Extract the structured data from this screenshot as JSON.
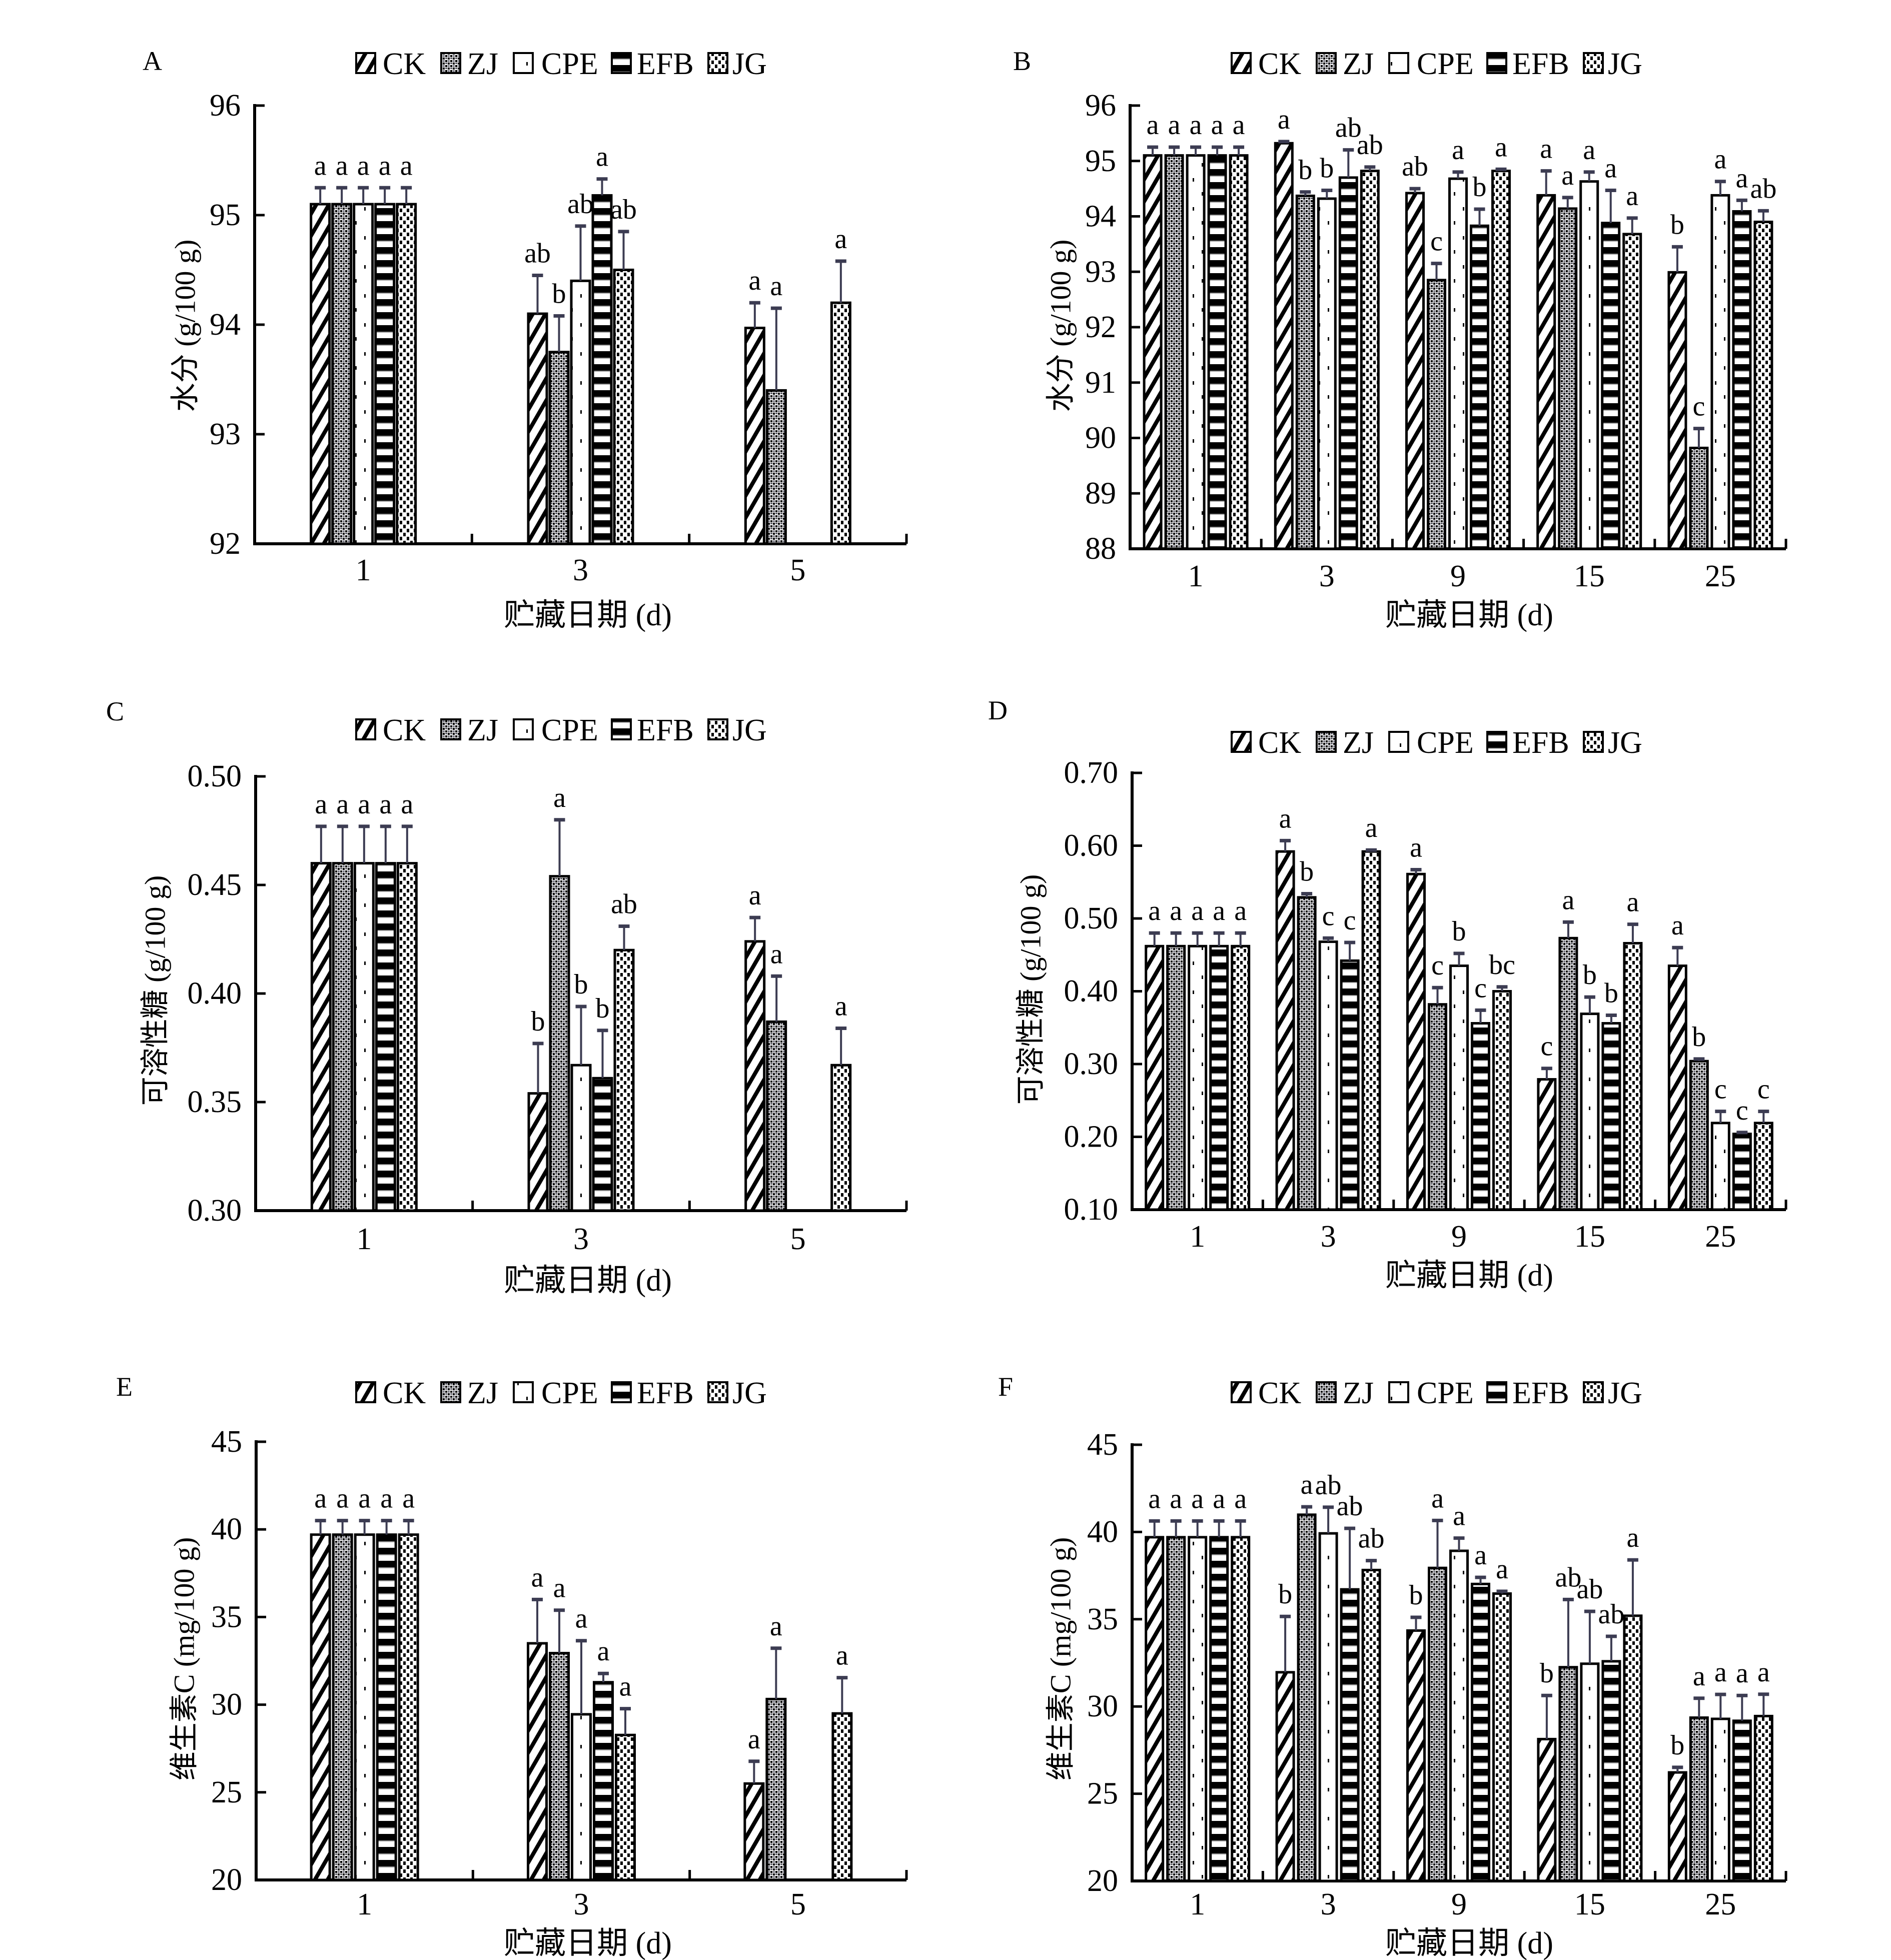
{
  "figure": {
    "series_names": [
      "CK",
      "ZJ",
      "CPE",
      "EFB",
      "JG"
    ],
    "colors": {
      "bar_outline": "#000000",
      "error_bar": "#3c3c52",
      "background": "#ffffff"
    }
  },
  "chart_data": [
    {
      "panel": "A",
      "type": "bar",
      "title": "",
      "xlabel": "贮藏日期 (d)",
      "ylabel": "水分 (g/100 g)",
      "ylim": [
        92,
        96
      ],
      "yticks": [
        "92",
        "93",
        "94",
        "95",
        "96"
      ],
      "grid": false,
      "legend": [
        "CK",
        "ZJ",
        "CPE",
        "EFB",
        "JG"
      ],
      "legend_position": "top-center",
      "categories": [
        "1",
        "3",
        "5"
      ],
      "series": [
        {
          "name": "CK",
          "values": [
            95.1,
            94.1,
            93.97
          ],
          "errors": [
            0.15,
            0.35,
            0.23
          ],
          "letters": [
            "a",
            "ab",
            "a"
          ]
        },
        {
          "name": "ZJ",
          "values": [
            95.1,
            93.75,
            93.4
          ],
          "errors": [
            0.15,
            0.33,
            0.75
          ],
          "letters": [
            "a",
            "b",
            "a"
          ]
        },
        {
          "name": "CPE",
          "values": [
            95.1,
            94.4,
            null
          ],
          "errors": [
            0.15,
            0.5,
            null
          ],
          "letters": [
            "a",
            "ab",
            ""
          ]
        },
        {
          "name": "EFB",
          "values": [
            95.1,
            95.18,
            null
          ],
          "errors": [
            0.15,
            0.15,
            null
          ],
          "letters": [
            "a",
            "a",
            ""
          ]
        },
        {
          "name": "JG",
          "values": [
            95.1,
            94.5,
            94.2
          ],
          "errors": [
            0.15,
            0.35,
            0.38
          ],
          "letters": [
            "a",
            "ab",
            "a"
          ]
        }
      ]
    },
    {
      "panel": "B",
      "type": "bar",
      "title": "",
      "xlabel": "贮藏日期 (d)",
      "ylabel": "水分 (g/100 g)",
      "ylim": [
        88,
        96
      ],
      "yticks": [
        "88",
        "89",
        "90",
        "91",
        "92",
        "93",
        "94",
        "95",
        "96"
      ],
      "grid": false,
      "legend": [
        "CK",
        "ZJ",
        "CPE",
        "EFB",
        "JG"
      ],
      "legend_position": "top-center",
      "categories": [
        "1",
        "3",
        "9",
        "15",
        "25"
      ],
      "series": [
        {
          "name": "CK",
          "values": [
            95.1,
            95.32,
            94.42,
            94.38,
            92.99
          ],
          "errors": [
            0.15,
            0.03,
            0.08,
            0.44,
            0.46
          ],
          "letters": [
            "a",
            "a",
            "ab",
            "a",
            "b"
          ]
        },
        {
          "name": "ZJ",
          "values": [
            95.1,
            94.37,
            92.85,
            94.14,
            89.82
          ],
          "errors": [
            0.15,
            0.07,
            0.3,
            0.2,
            0.35
          ],
          "letters": [
            "a",
            "b",
            "c",
            "a",
            "c"
          ]
        },
        {
          "name": "CPE",
          "values": [
            95.1,
            94.32,
            94.68,
            94.63,
            94.38
          ],
          "errors": [
            0.15,
            0.15,
            0.12,
            0.17,
            0.25
          ],
          "letters": [
            "a",
            "b",
            "a",
            "a",
            "a"
          ]
        },
        {
          "name": "EFB",
          "values": [
            95.1,
            94.7,
            93.83,
            93.88,
            94.09
          ],
          "errors": [
            0.15,
            0.5,
            0.3,
            0.59,
            0.2
          ],
          "letters": [
            "a",
            "ab",
            "b",
            "a",
            "a"
          ]
        },
        {
          "name": "JG",
          "values": [
            95.1,
            94.82,
            94.82,
            93.68,
            93.9
          ],
          "errors": [
            0.15,
            0.07,
            0.03,
            0.29,
            0.2
          ],
          "letters": [
            "a",
            "ab",
            "a",
            "a",
            "ab"
          ]
        }
      ]
    },
    {
      "panel": "C",
      "type": "bar",
      "title": "",
      "xlabel": "贮藏日期 (d)",
      "ylabel": "可溶性糖 (g/100 g)",
      "ylim": [
        0.3,
        0.5
      ],
      "yticks": [
        "0.30",
        "0.35",
        "0.40",
        "0.45",
        "0.50"
      ],
      "grid": false,
      "legend": [
        "CK",
        "ZJ",
        "CPE",
        "EFB",
        "JG"
      ],
      "legend_position": "top-center",
      "categories": [
        "1",
        "3",
        "5"
      ],
      "series": [
        {
          "name": "CK",
          "values": [
            0.46,
            0.354,
            0.424
          ],
          "errors": [
            0.017,
            0.023,
            0.011
          ],
          "letters": [
            "a",
            "b",
            "a"
          ]
        },
        {
          "name": "ZJ",
          "values": [
            0.46,
            0.454,
            0.387
          ],
          "errors": [
            0.017,
            0.026,
            0.021
          ],
          "letters": [
            "a",
            "a",
            "a"
          ]
        },
        {
          "name": "CPE",
          "values": [
            0.46,
            0.367,
            null
          ],
          "errors": [
            0.017,
            0.027,
            null
          ],
          "letters": [
            "a",
            "b",
            ""
          ]
        },
        {
          "name": "EFB",
          "values": [
            0.46,
            0.361,
            null
          ],
          "errors": [
            0.017,
            0.022,
            null
          ],
          "letters": [
            "a",
            "b",
            ""
          ]
        },
        {
          "name": "JG",
          "values": [
            0.46,
            0.42,
            0.367
          ],
          "errors": [
            0.017,
            0.011,
            0.017
          ],
          "letters": [
            "a",
            "ab",
            "a"
          ]
        }
      ]
    },
    {
      "panel": "D",
      "type": "bar",
      "title": "",
      "xlabel": "贮藏日期 (d)",
      "ylabel": "可溶性糖 (g/100 g)",
      "ylim": [
        0.1,
        0.7
      ],
      "yticks": [
        "0.10",
        "0.20",
        "0.30",
        "0.40",
        "0.50",
        "0.60",
        "0.70"
      ],
      "grid": false,
      "legend": [
        "CK",
        "ZJ",
        "CPE",
        "EFB",
        "JG"
      ],
      "legend_position": "top-center",
      "categories": [
        "1",
        "3",
        "9",
        "15",
        "25"
      ],
      "series": [
        {
          "name": "CK",
          "values": [
            0.462,
            0.592,
            0.561,
            0.279,
            0.435
          ],
          "errors": [
            0.018,
            0.015,
            0.006,
            0.015,
            0.025
          ],
          "letters": [
            "a",
            "a",
            "a",
            "c",
            "a"
          ]
        },
        {
          "name": "ZJ",
          "values": [
            0.462,
            0.529,
            0.382,
            0.473,
            0.304
          ],
          "errors": [
            0.018,
            0.005,
            0.023,
            0.022,
            0.003
          ],
          "letters": [
            "a",
            "b",
            "c",
            "a",
            "b"
          ]
        },
        {
          "name": "CPE",
          "values": [
            0.462,
            0.468,
            0.435,
            0.369,
            0.219
          ],
          "errors": [
            0.018,
            0.005,
            0.017,
            0.023,
            0.016
          ],
          "letters": [
            "a",
            "c",
            "b",
            "b",
            "c"
          ]
        },
        {
          "name": "EFB",
          "values": [
            0.462,
            0.442,
            0.356,
            0.356,
            0.204
          ],
          "errors": [
            0.018,
            0.025,
            0.018,
            0.011,
            0.002
          ],
          "letters": [
            "a",
            "c",
            "c",
            "b",
            "c"
          ]
        },
        {
          "name": "JG",
          "values": [
            0.462,
            0.592,
            0.4,
            0.466,
            0.219
          ],
          "errors": [
            0.018,
            0.002,
            0.006,
            0.026,
            0.016
          ],
          "letters": [
            "a",
            "a",
            "bc",
            "a",
            "c"
          ]
        }
      ]
    },
    {
      "panel": "E",
      "type": "bar",
      "title": "",
      "xlabel": "贮藏日期 (d)",
      "ylabel": "维生素C (mg/100 g)",
      "ylim": [
        20,
        45
      ],
      "yticks": [
        "20",
        "25",
        "30",
        "35",
        "40",
        "45"
      ],
      "grid": false,
      "legend": [
        "CK",
        "ZJ",
        "CPE",
        "EFB",
        "JG"
      ],
      "legend_position": "top-center",
      "categories": [
        "1",
        "3",
        "5"
      ],
      "series": [
        {
          "name": "CK",
          "values": [
            39.7,
            33.5,
            25.5
          ],
          "errors": [
            0.8,
            2.5,
            1.27
          ],
          "letters": [
            "a",
            "a",
            "a"
          ]
        },
        {
          "name": "ZJ",
          "values": [
            39.7,
            32.94,
            30.32
          ],
          "errors": [
            0.8,
            2.45,
            2.9
          ],
          "letters": [
            "a",
            "a",
            "a"
          ]
        },
        {
          "name": "CPE",
          "values": [
            39.7,
            29.45,
            null
          ],
          "errors": [
            0.8,
            4.2,
            null
          ],
          "letters": [
            "a",
            "a",
            ""
          ]
        },
        {
          "name": "EFB",
          "values": [
            39.7,
            31.28,
            null
          ],
          "errors": [
            0.8,
            0.5,
            null
          ],
          "letters": [
            "a",
            "a",
            ""
          ]
        },
        {
          "name": "JG",
          "values": [
            39.7,
            28.27,
            29.5
          ],
          "errors": [
            0.8,
            1.5,
            2.04
          ],
          "letters": [
            "a",
            "a",
            "a"
          ]
        }
      ]
    },
    {
      "panel": "F",
      "type": "bar",
      "title": "",
      "xlabel": "贮藏日期 (d)",
      "ylabel": "维生素C (mg/100 g)",
      "ylim": [
        20,
        45
      ],
      "yticks": [
        "20",
        "25",
        "30",
        "35",
        "40",
        "45"
      ],
      "grid": false,
      "legend": [
        "CK",
        "ZJ",
        "CPE",
        "EFB",
        "JG"
      ],
      "legend_position": "top-center",
      "categories": [
        "1",
        "3",
        "9",
        "15",
        "25"
      ],
      "series": [
        {
          "name": "CK",
          "values": [
            39.7,
            31.96,
            34.35,
            28.13,
            26.22
          ],
          "errors": [
            0.93,
            3.2,
            0.76,
            2.5,
            0.29
          ],
          "letters": [
            "a",
            "b",
            "b",
            "b",
            "b"
          ]
        },
        {
          "name": "ZJ",
          "values": [
            39.7,
            40.99,
            37.94,
            32.25,
            29.36
          ],
          "errors": [
            0.93,
            0.45,
            2.72,
            3.88,
            1.11
          ],
          "letters": [
            "a",
            "a",
            "a",
            "ab",
            "a"
          ]
        },
        {
          "name": "CPE",
          "values": [
            39.7,
            39.92,
            38.92,
            32.45,
            29.29
          ],
          "errors": [
            0.93,
            1.5,
            0.73,
            3.0,
            1.4
          ],
          "letters": [
            "a",
            "ab",
            "a",
            "ab",
            "a"
          ]
        },
        {
          "name": "EFB",
          "values": [
            39.7,
            36.71,
            37.02,
            32.59,
            29.18
          ],
          "errors": [
            0.93,
            3.5,
            0.38,
            1.43,
            1.45
          ],
          "letters": [
            "a",
            "ab",
            "a",
            "ab",
            "a"
          ]
        },
        {
          "name": "JG",
          "values": [
            39.7,
            37.82,
            36.47,
            35.2,
            29.45
          ],
          "errors": [
            0.93,
            0.54,
            0.13,
            3.2,
            1.25
          ],
          "letters": [
            "a",
            "ab",
            "a",
            "a",
            "a"
          ]
        }
      ]
    }
  ]
}
